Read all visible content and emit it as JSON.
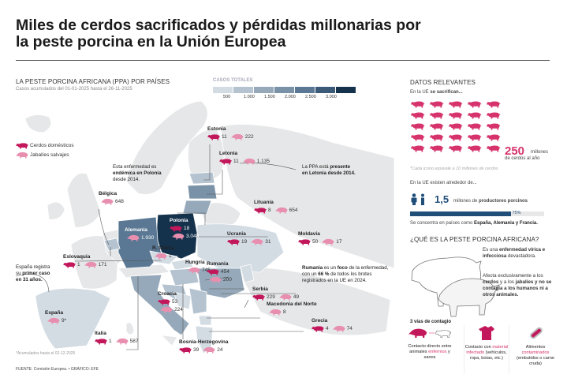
{
  "title": "Miles de cerdos sacrificados y pérdidas millonarias por la peste porcina en la Unión Europea",
  "map": {
    "heading": "LA PESTE PORCINA AFRICANA (PPA) POR PAÍSES",
    "subheading": "Casos acumulados del 01-01-2025 hasta el 26-11-2025",
    "scale": {
      "title": "CASOS TOTALES",
      "ticks": [
        "500",
        "1.000",
        "1.500",
        "2.000",
        "2.500",
        "3.000"
      ],
      "colors": [
        "#d3dbe3",
        "#b5c3d0",
        "#96a9ba",
        "#7a92a8",
        "#5a7893",
        "#3b5a78",
        "#15324d"
      ]
    },
    "legend": [
      {
        "label": "Cerdos domésticos",
        "color": "#c2185b"
      },
      {
        "label": "Jabalíes salvajes",
        "color": "#e88fb0"
      }
    ],
    "countries": [
      {
        "name": "Estonia",
        "domestic": "11",
        "wild": "222"
      },
      {
        "name": "Letonia",
        "domestic": "11",
        "wild": "1.135"
      },
      {
        "name": "Bélgica",
        "wild": "648"
      },
      {
        "name": "Lituania",
        "domestic": "8",
        "wild": "654"
      },
      {
        "name": "Polonia",
        "domestic": "18",
        "wild": "3.048"
      },
      {
        "name": "Alemania",
        "wild": "1.930"
      },
      {
        "name": "Ucrania",
        "domestic": "19",
        "wild": "31"
      },
      {
        "name": "Moldavia",
        "domestic": "50",
        "wild": "17"
      },
      {
        "name": "R. Checa",
        "wild": "1"
      },
      {
        "name": "Eslovaquia",
        "domestic": "1",
        "wild": "171"
      },
      {
        "name": "Hungría",
        "wild": "745"
      },
      {
        "name": "Rumania",
        "domestic": "454",
        "wild": "200"
      },
      {
        "name": "Serbia",
        "domestic": "229",
        "wild": "49"
      },
      {
        "name": "Croacia",
        "domestic": "53",
        "wild": "224"
      },
      {
        "name": "Macedonia del Norte",
        "wild": "8"
      },
      {
        "name": "Grecia",
        "domestic": "4",
        "wild": "74"
      },
      {
        "name": "España",
        "wild": "9*"
      },
      {
        "name": "Italia",
        "domestic": "1",
        "wild": "587"
      },
      {
        "name": "Bosnia-Herzegovina",
        "domestic": "39",
        "wild": "24"
      }
    ],
    "notes": {
      "polonia": [
        "Esta enfermedad es",
        "endémica en Polonia",
        "desde 2014."
      ],
      "letonia": [
        "La PPA está ",
        "presente",
        "en Letonia desde 2014."
      ],
      "espana": [
        "España registra",
        "su ",
        "primer caso",
        "en 31 años."
      ],
      "rumania": [
        "Rumania",
        " es un ",
        "foco",
        " de la enfermedad,",
        "con un ",
        "66 %",
        " de todos los brotes",
        "registrados en la UE en 2024."
      ]
    },
    "footnote": "*Acumulados hasta el 02-12-2025",
    "source": "FUENTE: Comisión Europea. • GRÁFICO: EFE"
  },
  "facts": {
    "heading": "DATOS RELEVANTES",
    "slaughter_intro": "En la UE ",
    "slaughter_bold": "se sacrifican...",
    "pig_icons": 25,
    "pig_number": "250",
    "pig_unit": "millones",
    "pig_unit2": "de cerdos al año",
    "icon_note": "*Cada icono equivale a 10 millones de cerdos",
    "producers_intro": "En la UE existen alrededor de...",
    "producers_number": "1,5",
    "producers_text": "millones de ",
    "producers_bold": "productores porcinos",
    "bar_percent": 75,
    "bar_label": "75%",
    "concentration": "Se concentra en países como ",
    "concentration_bold": "España, Alemania y Francia."
  },
  "what": {
    "heading": "¿QUÉ ES LA PESTE PORCINA AFRICANA?",
    "p1": [
      "Es una ",
      "enfermedad vírica e infecciosa",
      " devastadora."
    ],
    "p2": [
      "Afecta exclusivamente a los ",
      "cerdos",
      " y a los ",
      "jabalíes y no se contagia a los humanos ni a otros animales."
    ],
    "routes_heading": "3 vías de contagio",
    "routes": [
      {
        "a": "Contacto directo entre animales ",
        "b": "enfermos",
        "c": " y sanos"
      },
      {
        "a": "Contacto con ",
        "b": "material infectado",
        "c": " (vehículos, ropa, botas, etc.)"
      },
      {
        "a": "Alimentos ",
        "b": "contaminados",
        "c": " (embutidos o carne cruda)"
      }
    ]
  }
}
